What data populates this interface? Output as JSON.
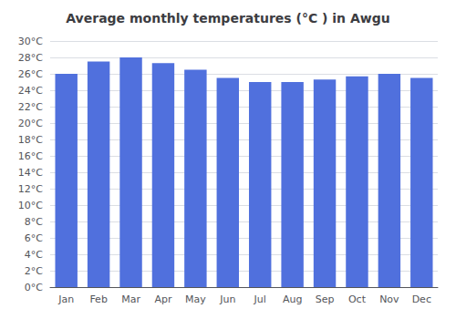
{
  "chart_data": {
    "type": "bar",
    "title": "Average monthly temperatures (°C ) in Awgu",
    "categories": [
      "Jan",
      "Feb",
      "Mar",
      "Apr",
      "May",
      "Jun",
      "Jul",
      "Aug",
      "Sep",
      "Oct",
      "Nov",
      "Dec"
    ],
    "values": [
      26.0,
      27.5,
      28.0,
      27.3,
      26.5,
      25.5,
      25.0,
      25.0,
      25.3,
      25.7,
      26.0,
      25.5
    ],
    "ylim": [
      0,
      30
    ],
    "yticks": [
      {
        "value": 0,
        "label": "0°C"
      },
      {
        "value": 2,
        "label": "2°C"
      },
      {
        "value": 4,
        "label": "4°C"
      },
      {
        "value": 6,
        "label": "6°C"
      },
      {
        "value": 8,
        "label": "8°C"
      },
      {
        "value": 10,
        "label": "10°C"
      },
      {
        "value": 12,
        "label": "12°C"
      },
      {
        "value": 14,
        "label": "14°C"
      },
      {
        "value": 16,
        "label": "16°C"
      },
      {
        "value": 18,
        "label": "18°C"
      },
      {
        "value": 20,
        "label": "20°C"
      },
      {
        "value": 22,
        "label": "22°C"
      },
      {
        "value": 24,
        "label": "24°C"
      },
      {
        "value": 26,
        "label": "26°C"
      },
      {
        "value": 28,
        "label": "28°C"
      },
      {
        "value": 30,
        "label": "30°C"
      }
    ],
    "grid": true
  }
}
